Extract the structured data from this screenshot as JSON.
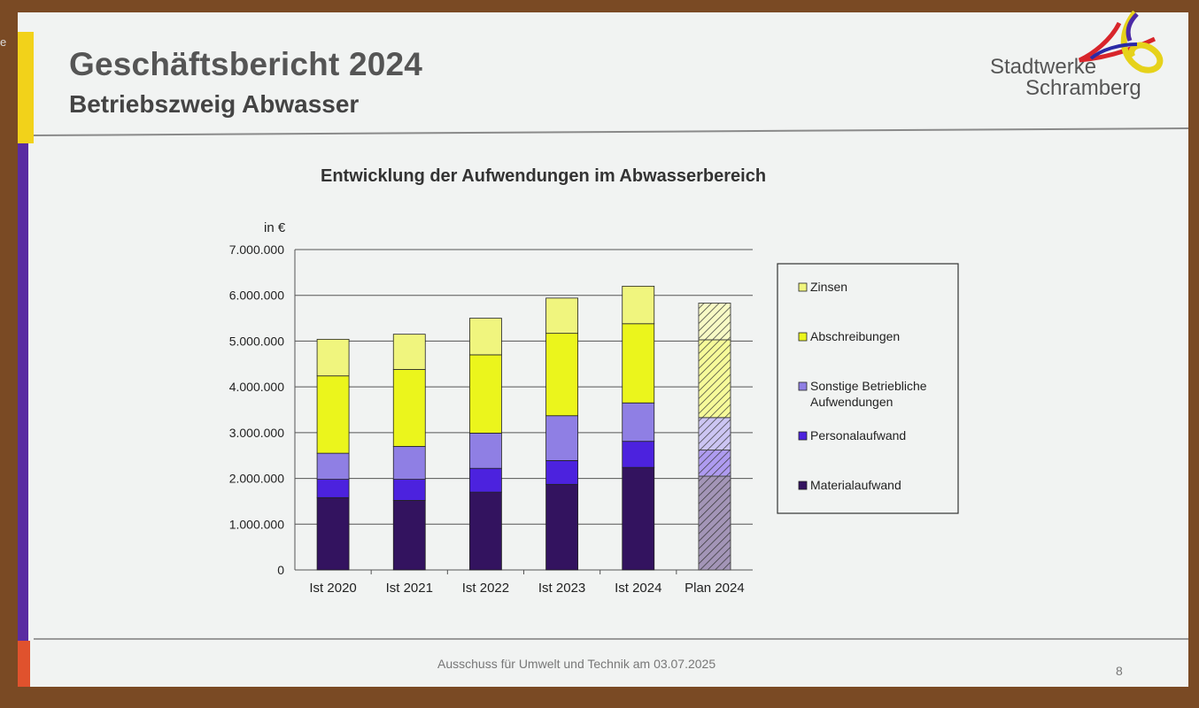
{
  "slide": {
    "title": "Geschäftsbericht 2024",
    "subtitle": "Betriebszweig Abwasser",
    "logo_line1": "Stadtwerke",
    "logo_line2": "Schramberg",
    "footer": "Ausschuss für Umwelt und Technik am 03.07.2025",
    "page_number": "8"
  },
  "colors": {
    "Zinsen": "#f0f57e",
    "Abschreibungen": "#ebf51c",
    "Sonstige Betriebliche Aufwendungen": "#8f7fe4",
    "Personalaufwand": "#4c22de",
    "Materialaufwand": "#33135f"
  },
  "chart_data": {
    "type": "bar",
    "stacked": true,
    "title": "Entwicklung der Aufwendungen im Abwasserbereich",
    "ylabel": "in  €",
    "xlabel": "",
    "ylim": [
      0,
      7000000
    ],
    "yticks": [
      "0",
      "1.000.000",
      "2.000.000",
      "3.000.000",
      "4.000.000",
      "5.000.000",
      "6.000.000",
      "7.000.000"
    ],
    "categories": [
      "Ist 2020",
      "Ist 2021",
      "Ist 2022",
      "Ist 2023",
      "Ist 2024",
      "Plan 2024"
    ],
    "hatched_category": "Plan 2024",
    "legend_position": "right",
    "grid": true,
    "series": [
      {
        "name": "Materialaufwand",
        "values": [
          1580000,
          1520000,
          1700000,
          1870000,
          2240000,
          2050000
        ]
      },
      {
        "name": "Personalaufwand",
        "values": [
          400000,
          460000,
          520000,
          520000,
          570000,
          570000
        ]
      },
      {
        "name": "Sonstige Betriebliche Aufwendungen",
        "values": [
          570000,
          720000,
          770000,
          980000,
          840000,
          710000
        ]
      },
      {
        "name": "Abschreibungen",
        "values": [
          1690000,
          1680000,
          1710000,
          1800000,
          1730000,
          1700000
        ]
      },
      {
        "name": "Zinsen",
        "values": [
          800000,
          770000,
          800000,
          770000,
          820000,
          800000
        ]
      }
    ],
    "legend_lines": [
      {
        "series": "Zinsen",
        "lines": [
          "Zinsen"
        ]
      },
      {
        "series": "Abschreibungen",
        "lines": [
          "Abschreibungen"
        ]
      },
      {
        "series": "Sonstige Betriebliche Aufwendungen",
        "lines": [
          "Sonstige Betriebliche",
          "Aufwendungen"
        ]
      },
      {
        "series": "Personalaufwand",
        "lines": [
          "Personalaufwand"
        ]
      },
      {
        "series": "Materialaufwand",
        "lines": [
          "Materialaufwand"
        ]
      }
    ]
  }
}
